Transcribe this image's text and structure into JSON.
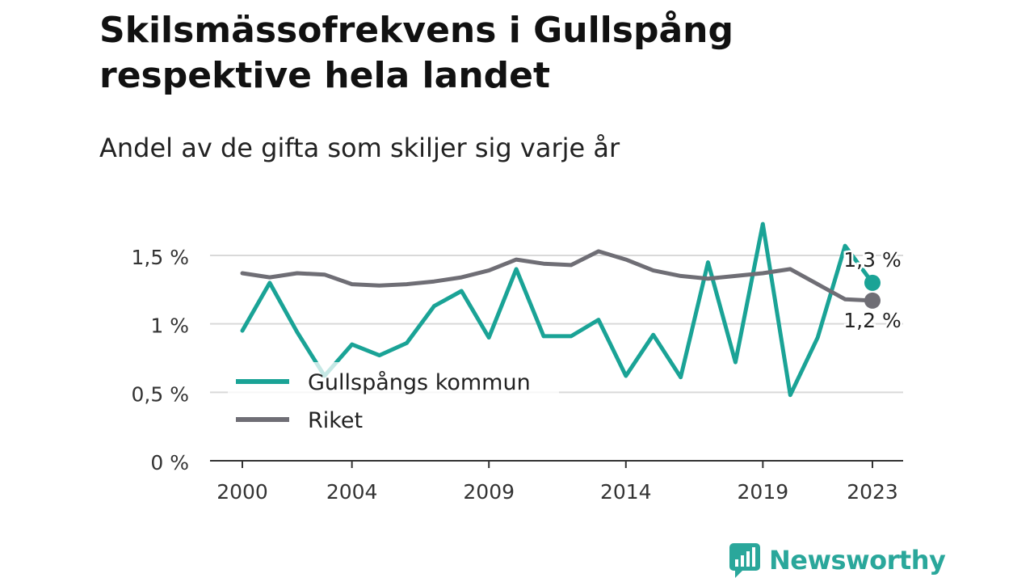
{
  "title": "Skilsmässofrekvens i Gullspång respektive hela landet",
  "subtitle": "Andel av de gifta som skiljer sig varje år",
  "brand": {
    "name": "Newsworthy",
    "icon": "newsworthy-logo-icon",
    "color": "#2aa79b"
  },
  "chart_data": {
    "type": "line",
    "x": [
      2000,
      2001,
      2002,
      2003,
      2004,
      2005,
      2006,
      2007,
      2008,
      2009,
      2010,
      2011,
      2012,
      2013,
      2014,
      2015,
      2016,
      2017,
      2018,
      2019,
      2020,
      2021,
      2022,
      2023
    ],
    "x_tick_labels": [
      "2000",
      "2004",
      "2009",
      "2014",
      "2019",
      "2023"
    ],
    "x_ticks": [
      2000,
      2004,
      2009,
      2014,
      2019,
      2023
    ],
    "y_ticks": [
      0,
      0.5,
      1,
      1.5
    ],
    "y_tick_labels": [
      "0 %",
      "0,5 %",
      "1 %",
      "1,5 %"
    ],
    "ylim": [
      0,
      1.8
    ],
    "grid": true,
    "legend_position": "bottom-left",
    "series": [
      {
        "name": "Gullspångs kommun",
        "color": "#1aa396",
        "values": [
          0.95,
          1.3,
          0.94,
          0.62,
          0.85,
          0.77,
          0.86,
          1.13,
          1.24,
          0.9,
          1.4,
          0.91,
          0.91,
          1.03,
          0.62,
          0.92,
          0.61,
          1.45,
          0.72,
          1.73,
          0.48,
          0.9,
          1.57,
          1.3
        ],
        "end_label": "1,3 %"
      },
      {
        "name": "Riket",
        "color": "#6f6e75",
        "values": [
          1.37,
          1.34,
          1.37,
          1.36,
          1.29,
          1.28,
          1.29,
          1.31,
          1.34,
          1.39,
          1.47,
          1.44,
          1.43,
          1.53,
          1.47,
          1.39,
          1.35,
          1.33,
          1.35,
          1.37,
          1.4,
          1.29,
          1.18,
          1.17
        ],
        "end_label": "1,2 %"
      }
    ]
  }
}
